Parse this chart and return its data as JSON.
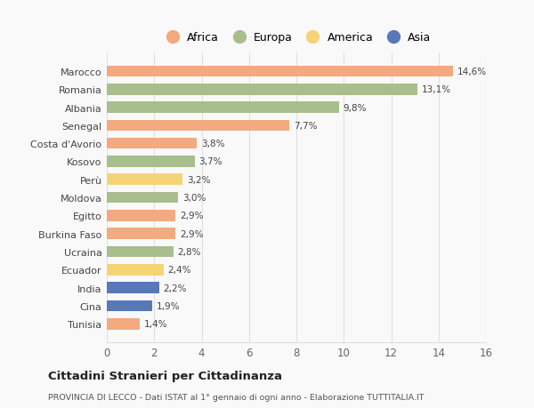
{
  "countries": [
    "Marocco",
    "Romania",
    "Albania",
    "Senegal",
    "Costa d'Avorio",
    "Kosovo",
    "Perù",
    "Moldova",
    "Egitto",
    "Burkina Faso",
    "Ucraina",
    "Ecuador",
    "India",
    "Cina",
    "Tunisia"
  ],
  "values": [
    14.6,
    13.1,
    9.8,
    7.7,
    3.8,
    3.7,
    3.2,
    3.0,
    2.9,
    2.9,
    2.8,
    2.4,
    2.2,
    1.9,
    1.4
  ],
  "labels": [
    "14,6%",
    "13,1%",
    "9,8%",
    "7,7%",
    "3,8%",
    "3,7%",
    "3,2%",
    "3,0%",
    "2,9%",
    "2,9%",
    "2,8%",
    "2,4%",
    "2,2%",
    "1,9%",
    "1,4%"
  ],
  "colors": [
    "#f2aa7e",
    "#a8be8c",
    "#a8be8c",
    "#f2aa7e",
    "#f2aa7e",
    "#a8be8c",
    "#f5d478",
    "#a8be8c",
    "#f2aa7e",
    "#f2aa7e",
    "#a8be8c",
    "#f5d478",
    "#5878b8",
    "#5878b8",
    "#f2aa7e"
  ],
  "legend_labels": [
    "Africa",
    "Europa",
    "America",
    "Asia"
  ],
  "legend_colors": [
    "#f2aa7e",
    "#a8be8c",
    "#f5d478",
    "#5878b8"
  ],
  "title": "Cittadini Stranieri per Cittadinanza",
  "subtitle": "PROVINCIA DI LECCO - Dati ISTAT al 1° gennaio di ogni anno - Elaborazione TUTTITALIA.IT",
  "xlim": [
    0,
    16
  ],
  "xticks": [
    0,
    2,
    4,
    6,
    8,
    10,
    12,
    14,
    16
  ],
  "bg_color": "#f9f9f9",
  "grid_color": "#e0e0e0"
}
